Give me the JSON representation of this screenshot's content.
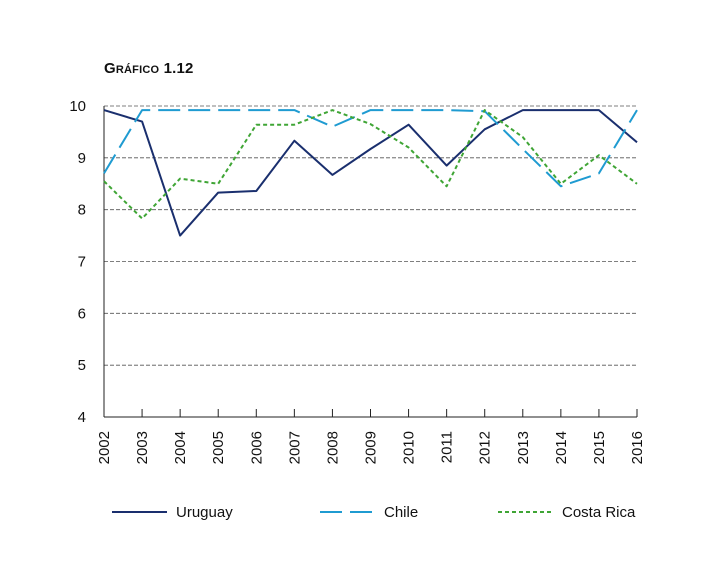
{
  "chart_data": {
    "type": "line",
    "title": "Gráfico 1.12",
    "xlabel": "",
    "ylabel": "",
    "x": [
      "2002",
      "2003",
      "2004",
      "2005",
      "2006",
      "2007",
      "2008",
      "2009",
      "2010",
      "2011",
      "2012",
      "2013",
      "2014",
      "2015",
      "2016"
    ],
    "ylim": [
      4,
      10
    ],
    "yticks": [
      4,
      5,
      6,
      7,
      8,
      9,
      10
    ],
    "grid": "horizontal dashed",
    "legend_placement": "bottom",
    "series": [
      {
        "name": "Uruguay",
        "color": "#1a2f6e",
        "dash": "solid",
        "values": [
          9.92,
          9.7,
          7.5,
          8.33,
          8.36,
          9.33,
          8.67,
          9.17,
          9.64,
          8.85,
          9.55,
          9.92,
          9.92,
          9.92,
          9.3
        ]
      },
      {
        "name": "Chile",
        "color": "#1f9bd1",
        "dash": "long-dash",
        "values": [
          8.7,
          9.92,
          9.92,
          9.92,
          9.92,
          9.92,
          9.6,
          9.92,
          9.92,
          9.92,
          9.9,
          9.17,
          8.45,
          8.7,
          9.92
        ]
      },
      {
        "name": "Costa Rica",
        "color": "#3fa535",
        "dash": "dotted",
        "values": [
          8.55,
          7.83,
          8.6,
          8.5,
          9.64,
          9.64,
          9.92,
          9.65,
          9.2,
          8.45,
          9.92,
          9.4,
          8.5,
          9.05,
          8.5
        ]
      }
    ]
  }
}
